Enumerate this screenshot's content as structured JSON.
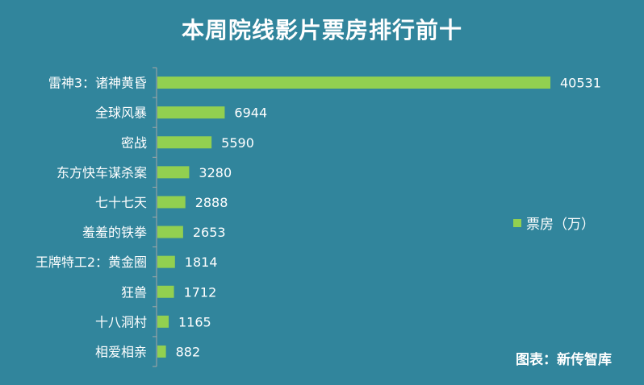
{
  "colors": {
    "background": "#31859c",
    "bar": "#92d050",
    "text": "#ffffff",
    "axis": "#a6a6a6"
  },
  "chart_data": {
    "type": "bar",
    "orientation": "horizontal",
    "title": "本周院线影片票房排行前十",
    "categories": [
      "雷神3：诸神黄昏",
      "全球风暴",
      "密战",
      "东方快车谋杀案",
      "七十七天",
      "羞羞的铁拳",
      "王牌特工2：黄金圈",
      "狂兽",
      "十八洞村",
      "相爱相亲"
    ],
    "series": [
      {
        "name": "票房（万）",
        "values": [
          40531,
          6944,
          5590,
          3280,
          2888,
          2653,
          1814,
          1712,
          1165,
          882
        ]
      }
    ],
    "xlim": [
      0,
      40531
    ],
    "grid": false,
    "legend_position": "right",
    "source": "图表：新传智库"
  }
}
